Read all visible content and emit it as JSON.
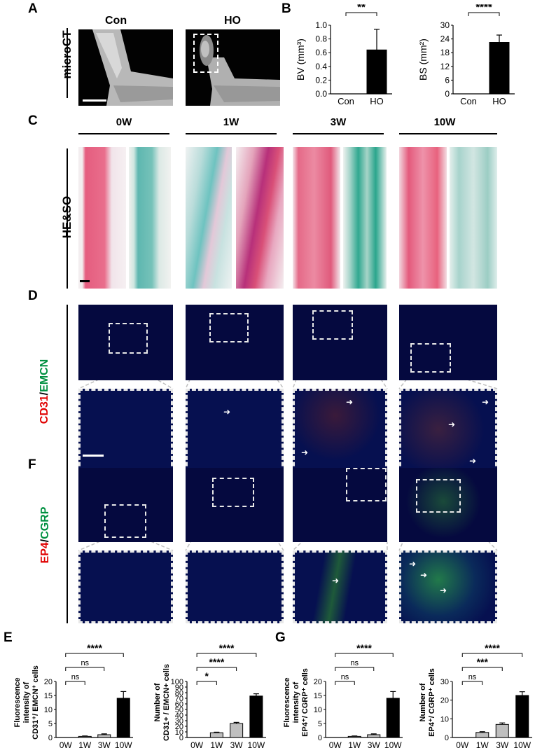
{
  "panel_letters": {
    "a": "A",
    "b": "B",
    "c": "C",
    "d": "D",
    "f": "F",
    "e": "E",
    "g": "G"
  },
  "microct": {
    "row_label": "microCT",
    "con_label": "Con",
    "ho_label": "HO"
  },
  "histology": {
    "row_label": "HE&SO",
    "timepoints": [
      "0W",
      "1W",
      "3W",
      "10W"
    ]
  },
  "cd31": {
    "label_red": "CD31",
    "slash": "/",
    "label_green": "EMCN"
  },
  "ep4": {
    "label_red": "EP4",
    "slash": "/",
    "label_green": "CGRP"
  },
  "colors": {
    "red": "#e00000",
    "green": "#009040",
    "bar_black": "#000000",
    "bar_gray": "#bfbfbf",
    "fluor_bg": "#05093f",
    "he_pink": "#e0607a",
    "so_teal": "#6fc0b8"
  },
  "chart_data": [
    {
      "id": "bv",
      "type": "bar",
      "categories": [
        "Con",
        "HO"
      ],
      "values": [
        0,
        0.64
      ],
      "errors": [
        0,
        0.3
      ],
      "ylabel": "BV (mm³)",
      "ylim": [
        0,
        1.0
      ],
      "yticks": [
        "0.0",
        "0.2",
        "0.4",
        "0.6",
        "0.8",
        "1.0"
      ],
      "colors": [
        "#000000",
        "#000000"
      ],
      "sig": [
        {
          "from": 0,
          "to": 1,
          "label": "**"
        }
      ]
    },
    {
      "id": "bs",
      "type": "bar",
      "categories": [
        "Con",
        "HO"
      ],
      "values": [
        0,
        22.5
      ],
      "errors": [
        0,
        3.2
      ],
      "ylabel": "BS (mm²)",
      "ylim": [
        0,
        30
      ],
      "yticks": [
        "0",
        "6",
        "12",
        "18",
        "24",
        "30"
      ],
      "colors": [
        "#000000",
        "#000000"
      ],
      "sig": [
        {
          "from": 0,
          "to": 1,
          "label": "****"
        }
      ]
    },
    {
      "id": "e1",
      "type": "bar",
      "categories": [
        "0W",
        "1W",
        "3W",
        "10W"
      ],
      "values": [
        0,
        0.4,
        1.0,
        14.0
      ],
      "errors": [
        0,
        0.15,
        0.3,
        2.4
      ],
      "ylabel_lines": [
        "Fluorescence",
        "intensity of",
        "CD31⁺/ EMCN⁺ cells"
      ],
      "ylim": [
        0,
        20
      ],
      "yticks": [
        "0",
        "5",
        "10",
        "15",
        "20"
      ],
      "colors": [
        "#000000",
        "#bfbfbf",
        "#bfbfbf",
        "#000000"
      ],
      "sig": [
        {
          "from": 0,
          "to": 1,
          "label": "ns"
        },
        {
          "from": 0,
          "to": 2,
          "label": "ns"
        },
        {
          "from": 0,
          "to": 3,
          "label": "****"
        }
      ]
    },
    {
      "id": "e2",
      "type": "bar",
      "categories": [
        "0W",
        "1W",
        "3W",
        "10W"
      ],
      "values": [
        0,
        8.5,
        25.0,
        74.0
      ],
      "errors": [
        0,
        1.0,
        2.0,
        4.0
      ],
      "ylabel_lines": [
        "Number of",
        "CD31+ / EMCN+ cells"
      ],
      "ylim": [
        0,
        100
      ],
      "yticks": [
        "0",
        "10",
        "20",
        "30",
        "40",
        "50",
        "60",
        "70",
        "80",
        "90",
        "100"
      ],
      "colors": [
        "#000000",
        "#bfbfbf",
        "#bfbfbf",
        "#000000"
      ],
      "sig": [
        {
          "from": 0,
          "to": 1,
          "label": "*"
        },
        {
          "from": 0,
          "to": 2,
          "label": "****"
        },
        {
          "from": 0,
          "to": 3,
          "label": "****"
        }
      ]
    },
    {
      "id": "g1",
      "type": "bar",
      "categories": [
        "0W",
        "1W",
        "3W",
        "10W"
      ],
      "values": [
        0,
        0.4,
        1.0,
        14.0
      ],
      "errors": [
        0,
        0.15,
        0.3,
        2.4
      ],
      "ylabel_lines": [
        "Fluorescence",
        "intensity of",
        "EP4⁺/ CGRP⁺ cells"
      ],
      "ylim": [
        0,
        20
      ],
      "yticks": [
        "0",
        "5",
        "10",
        "15",
        "20"
      ],
      "colors": [
        "#000000",
        "#bfbfbf",
        "#bfbfbf",
        "#000000"
      ],
      "sig": [
        {
          "from": 0,
          "to": 1,
          "label": "ns"
        },
        {
          "from": 0,
          "to": 2,
          "label": "ns"
        },
        {
          "from": 0,
          "to": 3,
          "label": "****"
        }
      ]
    },
    {
      "id": "g2",
      "type": "bar",
      "categories": [
        "0W",
        "1W",
        "3W",
        "10W"
      ],
      "values": [
        0,
        2.7,
        7.0,
        22.5
      ],
      "errors": [
        0,
        0.4,
        0.8,
        2.0
      ],
      "ylabel_lines": [
        "Number of",
        "EP4⁺/ CGRP⁺ cells"
      ],
      "ylim": [
        0,
        30
      ],
      "yticks": [
        "0",
        "10",
        "20",
        "30"
      ],
      "colors": [
        "#000000",
        "#bfbfbf",
        "#bfbfbf",
        "#000000"
      ],
      "sig": [
        {
          "from": 0,
          "to": 1,
          "label": "ns"
        },
        {
          "from": 0,
          "to": 2,
          "label": "***"
        },
        {
          "from": 0,
          "to": 3,
          "label": "****"
        }
      ]
    }
  ]
}
